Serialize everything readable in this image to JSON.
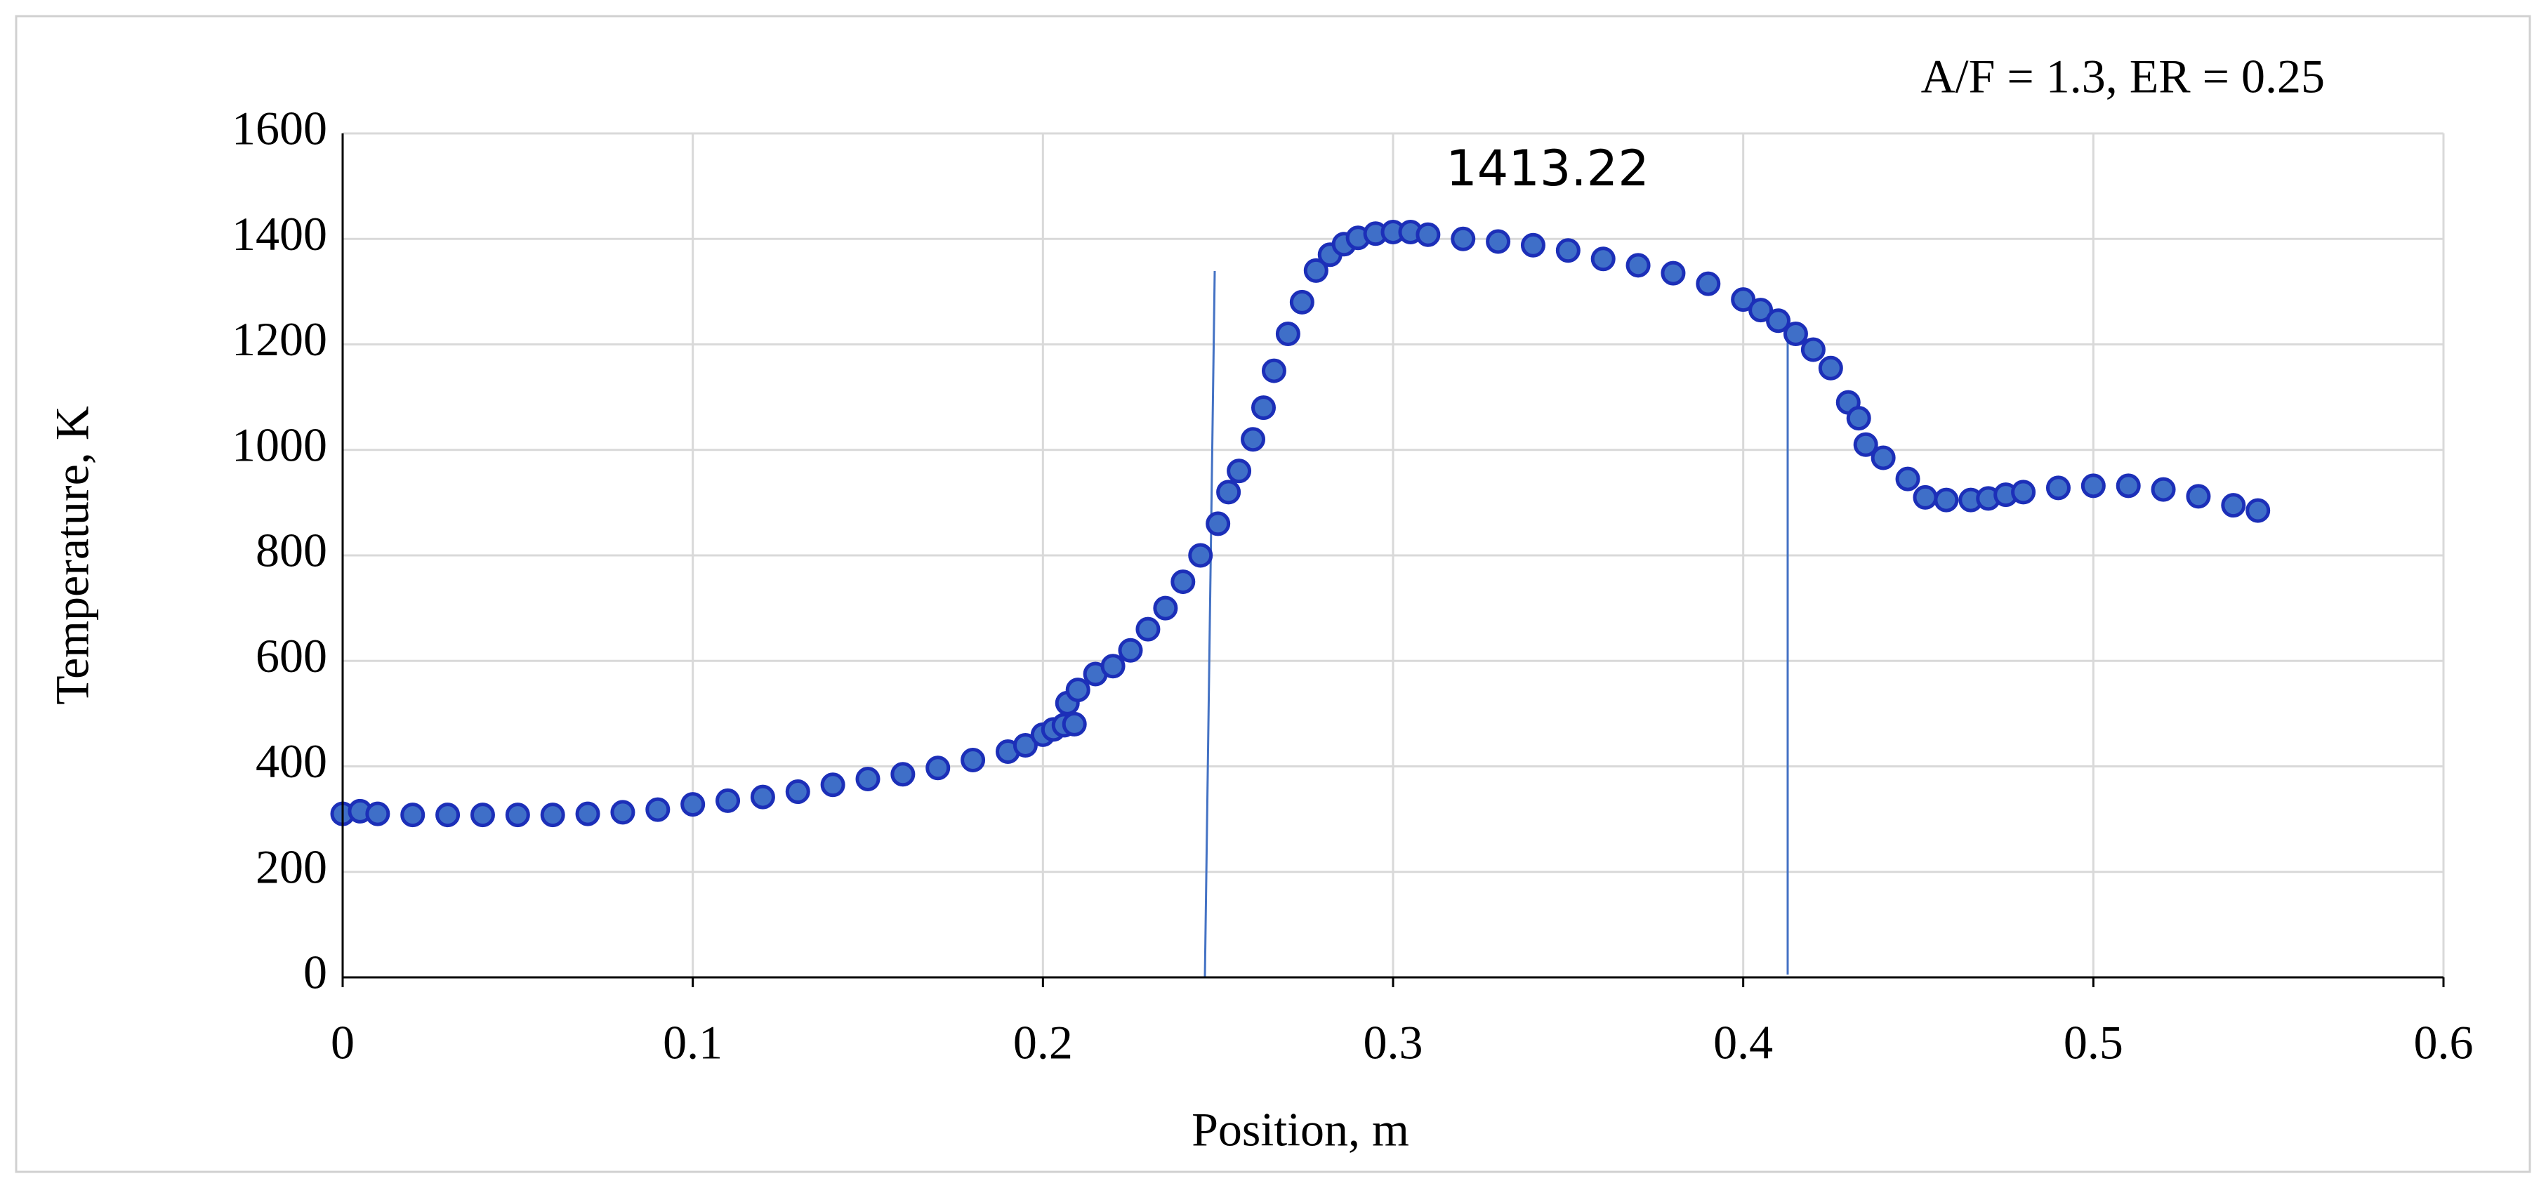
{
  "chart_data": {
    "type": "scatter",
    "annotations": [
      "A/F = 1.3, ER = 0.25",
      "1413.22"
    ],
    "x_label": "Position, m",
    "y_label": "Temperature, K",
    "x": [
      0.0,
      0.005,
      0.01,
      0.02,
      0.03,
      0.04,
      0.05,
      0.06,
      0.07,
      0.08,
      0.09,
      0.1,
      0.11,
      0.12,
      0.13,
      0.14,
      0.15,
      0.16,
      0.17,
      0.18,
      0.19,
      0.195,
      0.2,
      0.203,
      0.206,
      0.209,
      0.207,
      0.21,
      0.215,
      0.22,
      0.225,
      0.23,
      0.235,
      0.24,
      0.245,
      0.25,
      0.253,
      0.256,
      0.26,
      0.263,
      0.266,
      0.27,
      0.274,
      0.278,
      0.282,
      0.286,
      0.29,
      0.295,
      0.3,
      0.305,
      0.31,
      0.32,
      0.33,
      0.34,
      0.35,
      0.36,
      0.37,
      0.38,
      0.39,
      0.4,
      0.405,
      0.41,
      0.415,
      0.42,
      0.425,
      0.43,
      0.433,
      0.435,
      0.44,
      0.447,
      0.452,
      0.458,
      0.465,
      0.47,
      0.475,
      0.48,
      0.49,
      0.5,
      0.51,
      0.52,
      0.53,
      0.54,
      0.547
    ],
    "values": [
      310,
      315,
      310,
      308,
      308,
      308,
      308,
      308,
      310,
      313,
      318,
      328,
      335,
      342,
      352,
      365,
      376,
      385,
      397,
      412,
      428,
      440,
      460,
      470,
      478,
      480,
      520,
      545,
      575,
      590,
      620,
      660,
      700,
      750,
      800,
      860,
      920,
      960,
      1020,
      1080,
      1150,
      1220,
      1280,
      1340,
      1370,
      1390,
      1402,
      1410,
      1413,
      1413,
      1408,
      1400,
      1395,
      1388,
      1378,
      1362,
      1350,
      1335,
      1315,
      1285,
      1265,
      1245,
      1220,
      1190,
      1155,
      1090,
      1060,
      1010,
      985,
      945,
      910,
      905,
      905,
      908,
      915,
      920,
      928,
      932,
      932,
      925,
      912,
      895,
      885
    ],
    "color": "#3f6fc8",
    "xlim": [
      0,
      0.6
    ],
    "xticks": [
      0,
      0.1,
      0.2,
      0.3,
      0.4,
      0.5,
      0.6
    ],
    "ylim": [
      0,
      1600
    ],
    "yticks": [
      0,
      200,
      400,
      600,
      800,
      1000,
      1200,
      1400,
      1600
    ],
    "grid": true
  }
}
